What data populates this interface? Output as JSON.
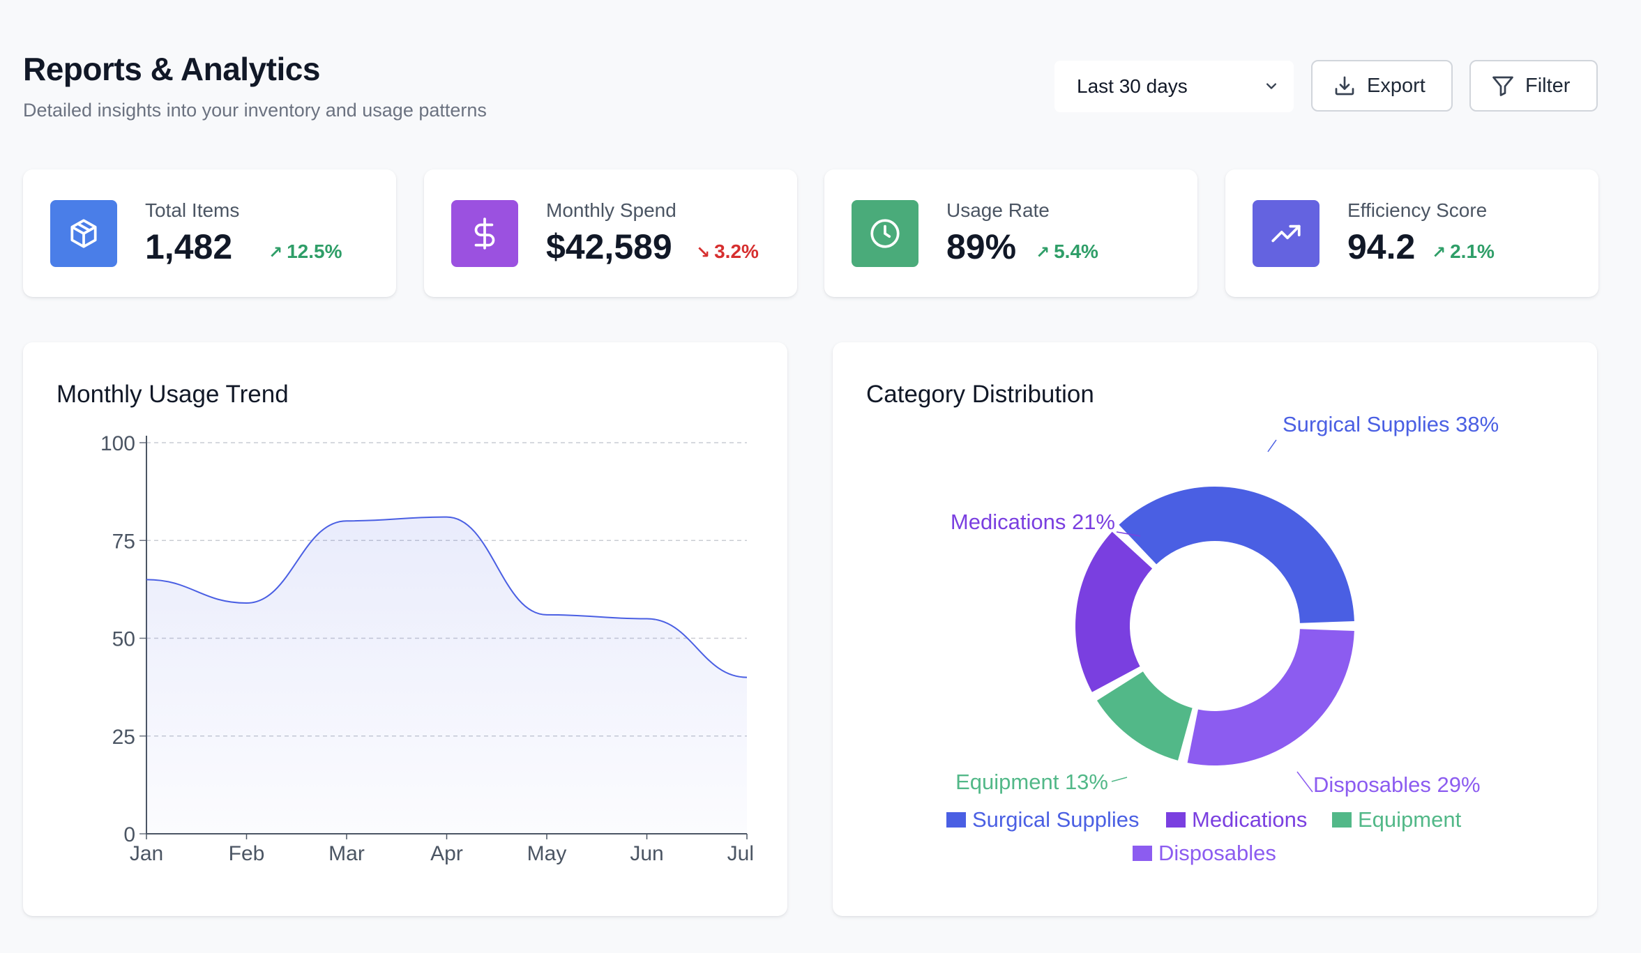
{
  "header": {
    "title": "Reports & Analytics",
    "subtitle": "Detailed insights into your inventory and usage patterns",
    "range_select": {
      "value": "Last 30 days"
    },
    "export_label": "Export",
    "filter_label": "Filter"
  },
  "kpis": [
    {
      "label": "Total Items",
      "value": "1,482",
      "change": "12.5%",
      "direction": "up",
      "color": "#4a7ee8",
      "icon": "box-icon"
    },
    {
      "label": "Monthly Spend",
      "value": "$42,589",
      "change": "3.2%",
      "direction": "down",
      "color": "#9b51e0",
      "icon": "dollar-icon"
    },
    {
      "label": "Usage Rate",
      "value": "89%",
      "change": "5.4%",
      "direction": "up",
      "color": "#4aab7a",
      "icon": "clock-icon"
    },
    {
      "label": "Efficiency Score",
      "value": "94.2",
      "change": "2.1%",
      "direction": "up",
      "color": "#6463e0",
      "icon": "trending-up-icon"
    }
  ],
  "usage_panel": {
    "title": "Monthly Usage Trend"
  },
  "category_panel": {
    "title": "Category Distribution"
  },
  "chart_data": [
    {
      "type": "area",
      "title": "Monthly Usage Trend",
      "x": [
        "Jan",
        "Feb",
        "Mar",
        "Apr",
        "May",
        "Jun",
        "Jul"
      ],
      "values": [
        65,
        59,
        80,
        81,
        56,
        55,
        40
      ],
      "ylim": [
        0,
        100
      ],
      "yticks": [
        "0",
        "25",
        "50",
        "75",
        "100"
      ],
      "grid": true,
      "color": "#4a5fe3"
    },
    {
      "type": "pie",
      "title": "Category Distribution",
      "labels": [
        "Surgical Supplies",
        "Medications",
        "Equipment",
        "Disposables"
      ],
      "values": [
        38,
        21,
        13,
        29
      ],
      "slice_labels": [
        "Surgical Supplies 38%",
        "Medications 21%",
        "Equipment 13%",
        "Disposables 29%"
      ],
      "colors": [
        "#4a5fe3",
        "#7a3fe0",
        "#52b888",
        "#8c5cf0"
      ],
      "legend": "bottom"
    }
  ]
}
